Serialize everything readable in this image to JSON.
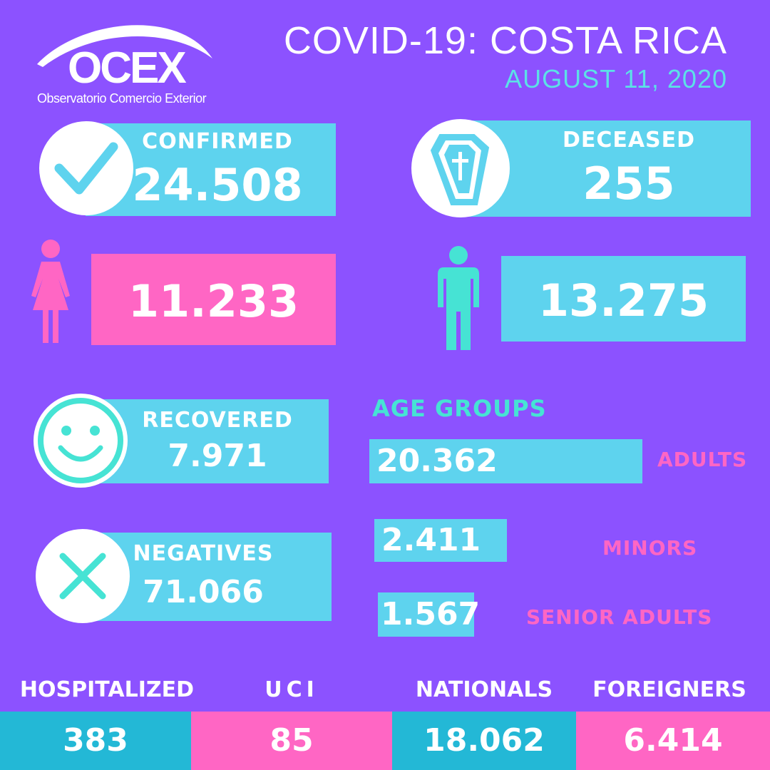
{
  "header": {
    "title": "COVID-19: COSTA RICA",
    "date": "AUGUST 11, 2020"
  },
  "logo": {
    "name": "OCEX",
    "subtitle": "Observatorio Comercio Exterior"
  },
  "stats": {
    "confirmed": {
      "label": "CONFIRMED",
      "value": "24.508",
      "icon": "checkmark-icon"
    },
    "deceased": {
      "label": "DECEASED",
      "value": "255",
      "icon": "coffin-icon"
    },
    "women": {
      "value": "11.233",
      "icon": "female-icon"
    },
    "men": {
      "value": "13.275",
      "icon": "male-icon"
    },
    "recovered": {
      "label": "RECOVERED",
      "value": "7.971",
      "icon": "smiley-icon"
    },
    "negatives": {
      "label": "NEGATIVES",
      "value": "71.066",
      "icon": "x-icon"
    }
  },
  "age_groups": {
    "title": "AGE GROUPS",
    "items": [
      {
        "value": "20.362",
        "label": "ADULTS"
      },
      {
        "value": "2.411",
        "label": "MINORS"
      },
      {
        "value": "1.567",
        "label": "SENIOR ADULTS"
      }
    ]
  },
  "bottom": [
    {
      "label": "HOSPITALIZED",
      "value": "383"
    },
    {
      "label": "UCI",
      "value": "85"
    },
    {
      "label": "NATIONALS",
      "value": "18.062"
    },
    {
      "label": "FOREIGNERS",
      "value": "6.414"
    }
  ],
  "colors": {
    "background": "#8c52ff",
    "cyan": "#5ed3ee",
    "pink": "#ff66c4",
    "teal": "#46e3d4",
    "dark_cyan": "#23b8d6"
  }
}
